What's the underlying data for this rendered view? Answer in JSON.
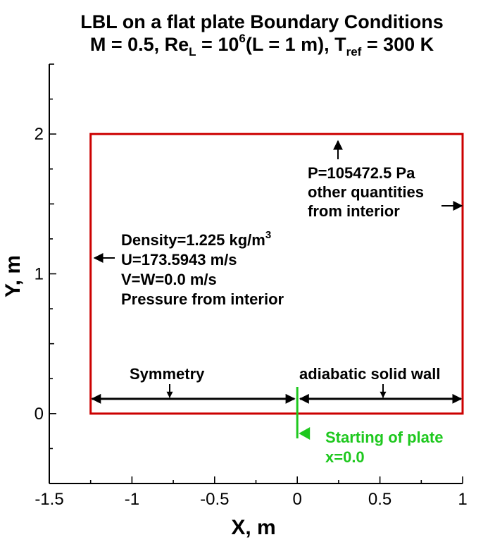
{
  "title": {
    "line1": "LBL on a flat plate Boundary Conditions",
    "line2_prefix": "M = 0.5, Re",
    "line2_sub_L": "L",
    "line2_eq": " = 10",
    "line2_sup": "6",
    "line2_mid": "(L = 1 m), T",
    "line2_sub_ref": "ref",
    "line2_end": " = 300 K"
  },
  "axes": {
    "xlabel": "X, m",
    "ylabel": "Y, m",
    "xlim": [
      -1.5,
      1.0
    ],
    "ylim": [
      -0.5,
      2.5
    ],
    "xticks": [
      -1.5,
      -1,
      -0.5,
      0,
      0.5,
      1
    ],
    "xtick_labels": [
      "-1.5",
      "-1",
      "-0.5",
      "0",
      "0.5",
      "1"
    ],
    "yticks": [
      0,
      1,
      2
    ],
    "ytick_labels": [
      "0",
      "1",
      "2"
    ]
  },
  "domain_box": {
    "x": [
      -1.25,
      1.0
    ],
    "y": [
      0.0,
      2.0
    ]
  },
  "inlet": {
    "line1_prefix": "Density=1.225 kg/m",
    "line1_sup": "3",
    "line2": "U=173.5943 m/s",
    "line3": "V=W=0.0 m/s",
    "line4": "Pressure from interior"
  },
  "outlet": {
    "line1": "P=105472.5 Pa",
    "line2": "other quantities",
    "line3": "from interior"
  },
  "symmetry": {
    "label": "Symmetry"
  },
  "wall": {
    "label": "adiabatic solid wall"
  },
  "plate_start": {
    "line1": "Starting of plate",
    "line2": "x=0.0",
    "x": 0.0
  },
  "colors": {
    "box": "#cc0000",
    "plate": "#1ec81e",
    "text": "#000000"
  }
}
